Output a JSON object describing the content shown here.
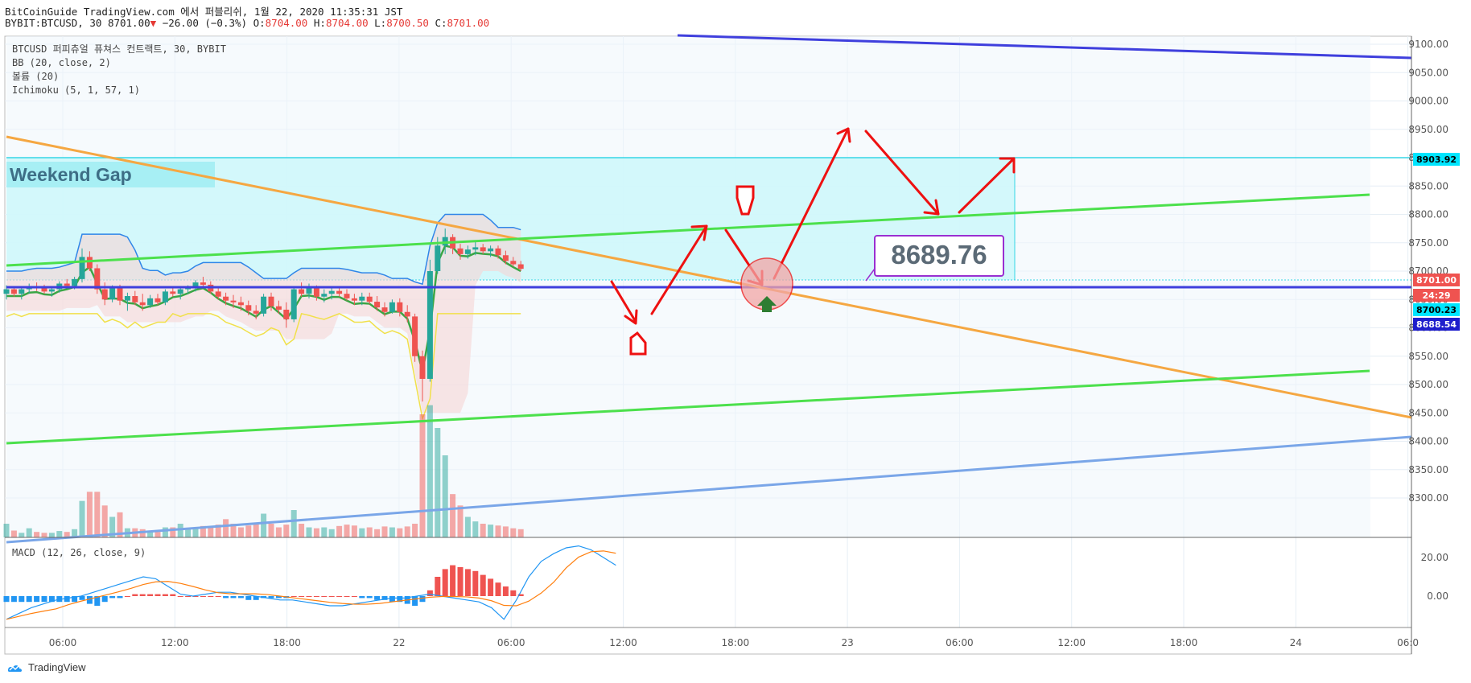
{
  "header": {
    "line1": "BitCoinGuide TradingView.com 에서 퍼블리쉬, 1월 22, 2020 11:35:31 JST",
    "symbol": "BYBIT:BTCUSD, 30",
    "last": "8701.00",
    "change": "−26.00 (−0.3%)",
    "o_label": "O:",
    "o": "8704.00",
    "h_label": "H:",
    "h": "8704.00",
    "l_label": "L:",
    "l": "8700.50",
    "c_label": "C:",
    "c": "8701.00"
  },
  "legend": {
    "title": "BTCUSD 퍼피츄얼 퓨쳐스 컨트랙트, 30, BYBIT",
    "bb": "BB (20, close, 2)",
    "volume": "볼륨 (20)",
    "ichimoku": "Ichimoku (5, 1, 57, 1)",
    "macd": "MACD (12, 26, close, 9)"
  },
  "annotations": {
    "weekend_gap": "Weekend Gap",
    "target_price": "8689.76"
  },
  "price_badges": [
    {
      "text": "8903.92",
      "bg": "#00e5ff",
      "fg": "#000000",
      "value": 8903.92
    },
    {
      "text": "8701.00",
      "bg": "#ef5350",
      "fg": "#ffffff",
      "value": 8701.0
    },
    {
      "text": "24:29",
      "bg": "#ef5350",
      "fg": "#ffffff",
      "value": 8688
    },
    {
      "text": "8700.23",
      "bg": "#00e5ff",
      "fg": "#000000",
      "value": 8700.23
    },
    {
      "text": "8688.54",
      "bg": "#1e1ecc",
      "fg": "#ffffff",
      "value": 8688.54
    }
  ],
  "footer": {
    "brand": "TradingView"
  },
  "colors": {
    "up": "#26a69a",
    "down": "#ef5350",
    "green_line": "#4ce04c",
    "orange_line": "#f5a742",
    "blue_line": "#3f3fdd",
    "light_blue": "#7aa6e8",
    "gap_fill": "#cff7fb",
    "arrow": "#ee1111"
  },
  "chart_data": {
    "type": "candlestick",
    "price_axis": {
      "min": 8270,
      "max": 9110,
      "ticks": [
        9100,
        9050,
        9000,
        8950,
        8900,
        8850,
        8800,
        8750,
        8700,
        8650,
        8600,
        8550,
        8500,
        8450,
        8400,
        8350,
        8300
      ]
    },
    "time_ticks": [
      "06:00",
      "12:00",
      "18:00",
      "22",
      "06:00",
      "12:00",
      "18:00",
      "23",
      "06:00",
      "12:00",
      "18:00",
      "24",
      "06:0"
    ],
    "macd_axis": {
      "ticks": [
        20.0,
        0.0
      ],
      "labels": [
        "20.00",
        "0.00"
      ]
    },
    "candles": [
      [
        8660,
        8675,
        8650,
        8668
      ],
      [
        8668,
        8672,
        8655,
        8660
      ],
      [
        8660,
        8670,
        8650,
        8668
      ],
      [
        8668,
        8678,
        8660,
        8672
      ],
      [
        8672,
        8680,
        8665,
        8670
      ],
      [
        8670,
        8676,
        8660,
        8664
      ],
      [
        8664,
        8670,
        8655,
        8668
      ],
      [
        8668,
        8682,
        8662,
        8678
      ],
      [
        8678,
        8686,
        8670,
        8674
      ],
      [
        8674,
        8690,
        8668,
        8686
      ],
      [
        8686,
        8740,
        8680,
        8725
      ],
      [
        8725,
        8735,
        8700,
        8705
      ],
      [
        8705,
        8712,
        8660,
        8668
      ],
      [
        8668,
        8680,
        8640,
        8650
      ],
      [
        8650,
        8675,
        8645,
        8670
      ],
      [
        8670,
        8676,
        8640,
        8648
      ],
      [
        8648,
        8662,
        8630,
        8656
      ],
      [
        8656,
        8665,
        8640,
        8645
      ],
      [
        8645,
        8660,
        8630,
        8640
      ],
      [
        8640,
        8658,
        8635,
        8652
      ],
      [
        8652,
        8660,
        8640,
        8645
      ],
      [
        8645,
        8668,
        8640,
        8664
      ],
      [
        8664,
        8672,
        8655,
        8660
      ],
      [
        8660,
        8670,
        8650,
        8668
      ],
      [
        8668,
        8675,
        8660,
        8670
      ],
      [
        8670,
        8684,
        8664,
        8680
      ],
      [
        8680,
        8690,
        8670,
        8676
      ],
      [
        8676,
        8682,
        8660,
        8664
      ],
      [
        8664,
        8672,
        8650,
        8655
      ],
      [
        8655,
        8662,
        8640,
        8648
      ],
      [
        8648,
        8658,
        8635,
        8645
      ],
      [
        8645,
        8655,
        8630,
        8640
      ],
      [
        8640,
        8648,
        8622,
        8630
      ],
      [
        8630,
        8640,
        8615,
        8625
      ],
      [
        8625,
        8660,
        8620,
        8655
      ],
      [
        8655,
        8662,
        8630,
        8638
      ],
      [
        8638,
        8648,
        8625,
        8632
      ],
      [
        8632,
        8645,
        8600,
        8615
      ],
      [
        8615,
        8672,
        8610,
        8668
      ],
      [
        8668,
        8680,
        8655,
        8660
      ],
      [
        8660,
        8678,
        8652,
        8670
      ],
      [
        8670,
        8675,
        8648,
        8655
      ],
      [
        8655,
        8668,
        8645,
        8660
      ],
      [
        8660,
        8670,
        8650,
        8665
      ],
      [
        8665,
        8672,
        8655,
        8660
      ],
      [
        8660,
        8668,
        8648,
        8652
      ],
      [
        8652,
        8660,
        8640,
        8648
      ],
      [
        8648,
        8662,
        8640,
        8655
      ],
      [
        8655,
        8662,
        8642,
        8646
      ],
      [
        8646,
        8656,
        8630,
        8636
      ],
      [
        8636,
        8645,
        8620,
        8628
      ],
      [
        8628,
        8650,
        8625,
        8645
      ],
      [
        8645,
        8652,
        8620,
        8628
      ],
      [
        8628,
        8640,
        8610,
        8620
      ],
      [
        8620,
        8625,
        8540,
        8550
      ],
      [
        8550,
        8560,
        8470,
        8510
      ],
      [
        8510,
        8720,
        8505,
        8700
      ],
      [
        8700,
        8760,
        8695,
        8745
      ],
      [
        8745,
        8775,
        8730,
        8760
      ],
      [
        8760,
        8765,
        8730,
        8740
      ],
      [
        8740,
        8748,
        8720,
        8730
      ],
      [
        8730,
        8745,
        8722,
        8738
      ],
      [
        8738,
        8752,
        8728,
        8742
      ],
      [
        8742,
        8748,
        8730,
        8735
      ],
      [
        8735,
        8745,
        8725,
        8740
      ],
      [
        8740,
        8745,
        8722,
        8728
      ],
      [
        8728,
        8736,
        8712,
        8718
      ],
      [
        8718,
        8725,
        8708,
        8712
      ],
      [
        8712,
        8718,
        8700,
        8704
      ]
    ],
    "volume": [
      30,
      15,
      10,
      20,
      12,
      10,
      10,
      14,
      12,
      18,
      80,
      100,
      100,
      70,
      45,
      55,
      20,
      20,
      18,
      12,
      12,
      22,
      22,
      30,
      18,
      22,
      25,
      22,
      28,
      40,
      30,
      22,
      26,
      30,
      52,
      30,
      22,
      28,
      60,
      30,
      22,
      20,
      22,
      18,
      25,
      28,
      26,
      20,
      22,
      18,
      24,
      22,
      20,
      24,
      30,
      270,
      290,
      240,
      180,
      95,
      70,
      45,
      35,
      30,
      28,
      26,
      24,
      20,
      18
    ],
    "macd_hist": [
      -3,
      -3,
      -3,
      -3,
      -3,
      -3,
      -3,
      -3,
      -3,
      -3,
      -2,
      -4,
      -5,
      -3,
      -1,
      -1,
      0,
      1,
      1,
      1,
      1,
      1,
      1,
      0,
      0,
      0,
      0,
      0,
      0,
      -1,
      -1,
      -1,
      -2,
      -2,
      -1,
      -1,
      -1,
      -1,
      0,
      0,
      0,
      0,
      0,
      0,
      0,
      0,
      0,
      -1,
      -1,
      -2,
      -2,
      -3,
      -3,
      -4,
      -5,
      -3,
      3,
      10,
      14,
      16,
      15,
      14,
      13,
      11,
      9,
      7,
      5,
      3,
      1
    ],
    "macd_line": [
      -12,
      -9,
      -6,
      -4,
      -2,
      -1,
      0,
      2,
      4,
      6,
      8,
      10,
      9,
      5,
      1,
      0,
      1,
      2,
      2,
      1,
      0,
      -1,
      -2,
      -2,
      -3,
      -4,
      -5,
      -5,
      -4,
      -3,
      -2,
      -1,
      -1,
      0,
      1,
      0,
      -1,
      -2,
      -3,
      -6,
      -12,
      -2,
      10,
      18,
      22,
      25,
      26,
      24,
      20,
      16
    ]
  }
}
